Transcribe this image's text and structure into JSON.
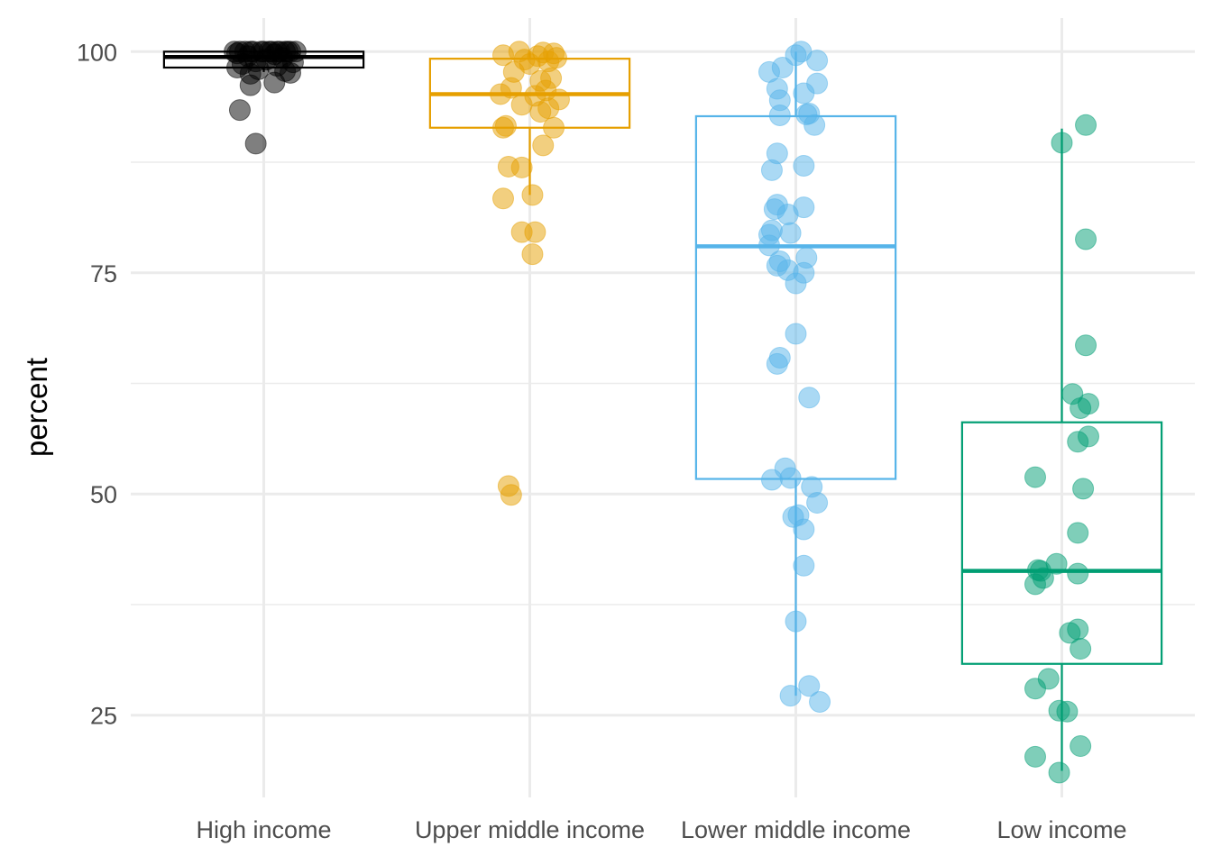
{
  "chart_data": {
    "type": "boxplot",
    "title": "",
    "xlabel": "",
    "ylabel": "percent",
    "ylim": [
      15.7,
      103.8
    ],
    "y_ticks": [
      25,
      50,
      75,
      100
    ],
    "y_tick_labels": [
      "25",
      "50",
      "75",
      "100"
    ],
    "y_minor_ticks": [
      37.5,
      62.5,
      87.5
    ],
    "grid": true,
    "legend": "none",
    "categories": [
      "High income",
      "Upper middle income",
      "Lower middle income",
      "Low income"
    ],
    "groups": [
      {
        "category": "High income",
        "color": "#000000",
        "box": {
          "min": 97.7,
          "q1": 98.2,
          "median": 99.4,
          "q3": 100,
          "max": 100
        },
        "points": [
          100,
          100,
          100,
          100,
          100,
          100,
          100,
          100,
          100,
          100,
          100,
          100,
          100,
          100,
          100,
          99.8,
          99.7,
          99.5,
          99.3,
          99.1,
          98.9,
          98.8,
          98.6,
          98.4,
          98.2,
          98.0,
          97.8,
          97.6,
          97.5,
          96.5,
          96.2,
          93.4,
          89.6
        ],
        "point_offsets": [
          -0.11,
          -0.07,
          -0.04,
          -0.01,
          0.02,
          0.05,
          0.08,
          0.1,
          0.06,
          0.0,
          -0.05,
          0.09,
          -0.09,
          0.03,
          0.12,
          -0.1,
          0.04,
          -0.06,
          0.07,
          0.01,
          -0.03,
          0.11,
          -0.08,
          0.05,
          -0.1,
          -0.02,
          0.08,
          0.1,
          -0.05,
          0.04,
          -0.05,
          -0.09,
          -0.03
        ]
      },
      {
        "category": "Upper middle income",
        "color": "#E69F00",
        "box": {
          "min": 83.8,
          "q1": 91.4,
          "median": 95.2,
          "q3": 99.2,
          "max": 100
        },
        "points": [
          100,
          99.9,
          99.8,
          99.6,
          99.5,
          99.3,
          99.1,
          98.9,
          98.6,
          97.7,
          97.0,
          96.7,
          95.9,
          95.6,
          95.2,
          95.0,
          94.6,
          94.0,
          93.6,
          93.2,
          91.6,
          91.4,
          91.4,
          89.4,
          87.0,
          86.9,
          83.8,
          83.4,
          79.6,
          79.6,
          77.1,
          50.9,
          49.9
        ],
        "point_offsets": [
          -0.04,
          0.05,
          0.09,
          -0.1,
          0.03,
          0.1,
          -0.02,
          0.07,
          0.0,
          -0.06,
          0.08,
          0.04,
          -0.07,
          0.06,
          -0.11,
          0.02,
          0.11,
          -0.03,
          0.07,
          0.04,
          -0.09,
          -0.1,
          0.09,
          0.05,
          -0.08,
          -0.03,
          0.01,
          -0.1,
          -0.03,
          0.02,
          0.01,
          -0.08,
          -0.07
        ]
      },
      {
        "category": "Lower middle income",
        "color": "#56B4E9",
        "box": {
          "min": 27.2,
          "q1": 51.7,
          "median": 78.0,
          "q3": 92.7,
          "max": 100
        },
        "points": [
          100,
          99.6,
          99.0,
          98.2,
          97.7,
          96.4,
          95.8,
          95.3,
          94.5,
          93.0,
          92.8,
          92.9,
          91.7,
          88.5,
          87.1,
          86.6,
          82.7,
          82.4,
          82.2,
          81.6,
          79.8,
          79.5,
          79.3,
          78.1,
          76.7,
          76.3,
          75.8,
          75.3,
          75.0,
          73.8,
          68.1,
          65.4,
          64.7,
          60.9,
          52.9,
          51.8,
          51.6,
          50.8,
          49.0,
          47.6,
          47.4,
          46.0,
          41.9,
          35.6,
          28.3,
          27.2,
          26.5
        ],
        "point_offsets": [
          0.02,
          0.0,
          0.08,
          -0.05,
          -0.1,
          0.08,
          -0.07,
          0.03,
          -0.06,
          0.05,
          -0.06,
          0.04,
          0.07,
          -0.07,
          0.03,
          -0.09,
          -0.07,
          0.03,
          -0.08,
          -0.03,
          -0.09,
          -0.02,
          -0.1,
          -0.1,
          0.04,
          -0.06,
          -0.07,
          -0.03,
          0.03,
          0.0,
          0.0,
          -0.06,
          -0.07,
          0.05,
          -0.04,
          -0.02,
          -0.09,
          0.06,
          0.08,
          0.01,
          -0.01,
          0.03,
          0.03,
          0.0,
          0.05,
          -0.02,
          0.09
        ]
      },
      {
        "category": "Low income",
        "color": "#009E73",
        "box": {
          "min": 18.7,
          "q1": 30.8,
          "median": 41.3,
          "q3": 58.1,
          "max": 91.3
        },
        "points": [
          91.7,
          89.7,
          78.8,
          66.8,
          61.3,
          60.2,
          59.7,
          56.5,
          55.9,
          51.9,
          50.6,
          45.6,
          42.1,
          41.4,
          41.3,
          41.0,
          40.5,
          39.8,
          34.7,
          34.3,
          32.5,
          29.1,
          28.0,
          25.5,
          25.4,
          21.5,
          20.3,
          18.5
        ],
        "point_offsets": [
          0.09,
          0.0,
          0.09,
          0.09,
          0.04,
          0.1,
          0.07,
          0.1,
          0.06,
          -0.1,
          0.08,
          0.06,
          -0.02,
          -0.09,
          -0.08,
          0.06,
          -0.07,
          -0.1,
          0.06,
          0.03,
          0.07,
          -0.05,
          -0.1,
          -0.01,
          0.02,
          0.07,
          -0.1,
          -0.01
        ]
      }
    ]
  }
}
